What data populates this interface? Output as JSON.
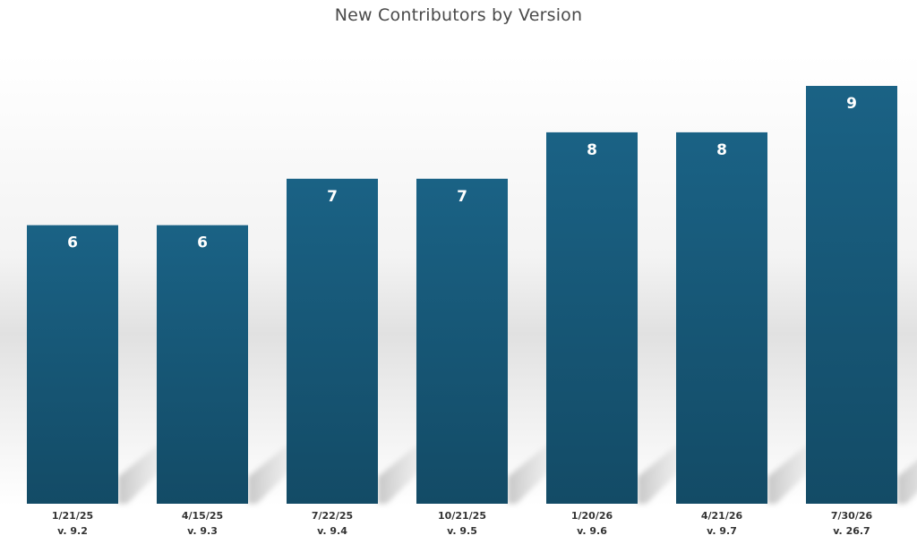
{
  "chart_data": {
    "type": "bar",
    "title": "New Contributors by Version",
    "categories": [
      "1/21/25",
      "4/15/25",
      "7/22/25",
      "10/21/25",
      "1/20/26",
      "4/21/26",
      "7/30/26"
    ],
    "versions": [
      "v. 9.2",
      "v. 9.3",
      "v. 9.4",
      "v. 9.5",
      "v. 9.6",
      "v. 9.7",
      "v. 26.7"
    ],
    "values": [
      6,
      6,
      7,
      7,
      8,
      8,
      9
    ],
    "xlabel": "",
    "ylabel": "",
    "ylim": [
      0,
      9
    ],
    "grid": false,
    "legend": "none",
    "data_labels": true,
    "colors": {
      "bar_top": "#1a6285",
      "bar_bottom": "#134b66",
      "label": "#ffffff",
      "axis_text": "#333333",
      "title": "#4a4a4a",
      "background_band": "#e2e2e2"
    }
  }
}
